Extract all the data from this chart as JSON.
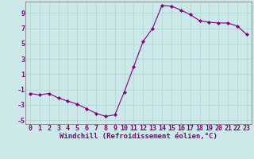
{
  "x": [
    0,
    1,
    2,
    3,
    4,
    5,
    6,
    7,
    8,
    9,
    10,
    11,
    12,
    13,
    14,
    15,
    16,
    17,
    18,
    19,
    20,
    21,
    22,
    23
  ],
  "y": [
    -1.5,
    -1.7,
    -1.5,
    -2.1,
    -2.5,
    -2.9,
    -3.5,
    -4.1,
    -4.5,
    -4.3,
    -1.3,
    2.0,
    5.3,
    7.0,
    10.0,
    9.9,
    9.4,
    8.8,
    8.0,
    7.8,
    7.7,
    7.7,
    7.3,
    6.2
  ],
  "line_color": "#800080",
  "marker": "D",
  "markersize": 2.0,
  "linewidth": 0.8,
  "xlabel": "Windchill (Refroidissement éolien,°C)",
  "xlim": [
    -0.5,
    23.5
  ],
  "ylim": [
    -5.5,
    10.5
  ],
  "yticks": [
    -5,
    -3,
    -1,
    1,
    3,
    5,
    7,
    9
  ],
  "xticks": [
    0,
    1,
    2,
    3,
    4,
    5,
    6,
    7,
    8,
    9,
    10,
    11,
    12,
    13,
    14,
    15,
    16,
    17,
    18,
    19,
    20,
    21,
    22,
    23
  ],
  "grid_color": "#b0d8d8",
  "background_color": "#cce8e8",
  "tick_label_color": "#800080",
  "xlabel_fontsize": 6.5,
  "tick_fontsize": 6.0
}
